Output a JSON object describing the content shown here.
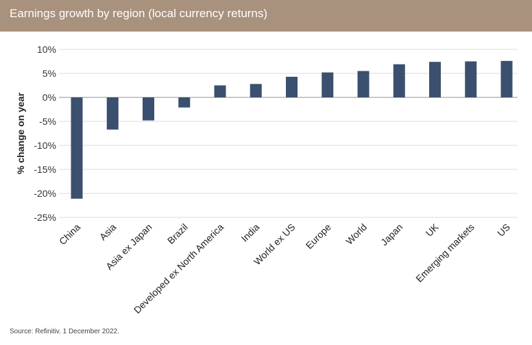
{
  "header": {
    "title": "Earnings growth by region (local currency returns)",
    "background_color": "#a8917d"
  },
  "source": "Source: Refinitiv. 1 December 2022.",
  "chart_data": {
    "type": "bar",
    "title": "Earnings growth by region (local currency returns)",
    "xlabel": "",
    "ylabel": "% change on year",
    "ylim": [
      -25,
      10
    ],
    "yticks": [
      "10%",
      "5%",
      "0%",
      "-5%",
      "-10%",
      "-15%",
      "-20%",
      "-25%"
    ],
    "ytick_values": [
      10,
      5,
      0,
      -5,
      -10,
      -15,
      -20,
      -25
    ],
    "grid": true,
    "bar_color": "#3b4f6e",
    "categories": [
      "China",
      "Asia",
      "Asia ex Japan",
      "Brazil",
      "Developed ex North America",
      "India",
      "World ex US",
      "Europe",
      "World",
      "Japan",
      "UK",
      "Emerging markets",
      "US"
    ],
    "values": [
      -21.1,
      -6.7,
      -4.8,
      -2.1,
      2.5,
      2.8,
      4.3,
      5.2,
      5.5,
      6.9,
      7.4,
      7.5,
      7.6
    ]
  }
}
